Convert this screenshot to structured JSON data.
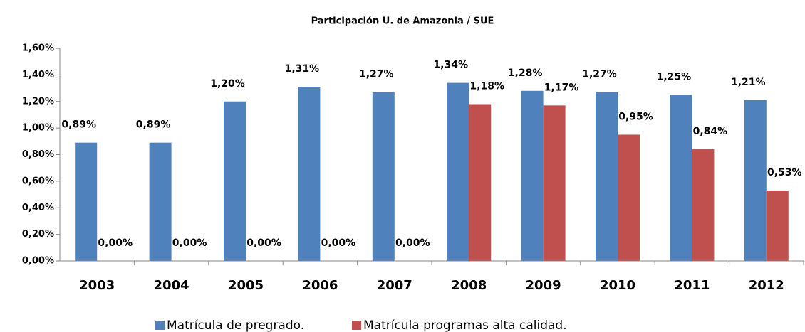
{
  "chart_data": {
    "type": "bar",
    "title": "Participación U. de Amazonia / SUE",
    "categories": [
      "2003",
      "2004",
      "2005",
      "2006",
      "2007",
      "2008",
      "2009",
      "2010",
      "2011",
      "2012"
    ],
    "series": [
      {
        "name": "Matrícula de pregrado.",
        "color": "#4f81bd",
        "values": [
          0.89,
          0.89,
          1.2,
          1.31,
          1.27,
          1.34,
          1.28,
          1.27,
          1.25,
          1.21
        ],
        "value_labels": [
          "0,89%",
          "0,89%",
          "1,20%",
          "1,31%",
          "1,27%",
          "1,34%",
          "1,28%",
          "1,27%",
          "1,25%",
          "1,21%"
        ]
      },
      {
        "name": "Matrícula programas alta calidad.",
        "color": "#c0504d",
        "values": [
          0,
          0,
          0,
          0,
          0,
          1.18,
          1.17,
          0.95,
          0.84,
          0.53
        ],
        "value_labels": [
          "0,00%",
          "0,00%",
          "0,00%",
          "0,00%",
          "0,00%",
          "1,18%",
          "1,17%",
          "0,95%",
          "0,84%",
          "0,53%"
        ]
      }
    ],
    "ylim": [
      0,
      1.6
    ],
    "yticks": [
      {
        "value": 0,
        "label": "0,00%"
      },
      {
        "value": 0.2,
        "label": "0,20%"
      },
      {
        "value": 0.4,
        "label": "0,40%"
      },
      {
        "value": 0.6,
        "label": "0,60%"
      },
      {
        "value": 0.8,
        "label": "0,80%"
      },
      {
        "value": 1.0,
        "label": "1,00%"
      },
      {
        "value": 1.2,
        "label": "1,20%"
      },
      {
        "value": 1.4,
        "label": "1,40%"
      },
      {
        "value": 1.6,
        "label": "1,60%"
      }
    ],
    "legend": "bottom"
  }
}
